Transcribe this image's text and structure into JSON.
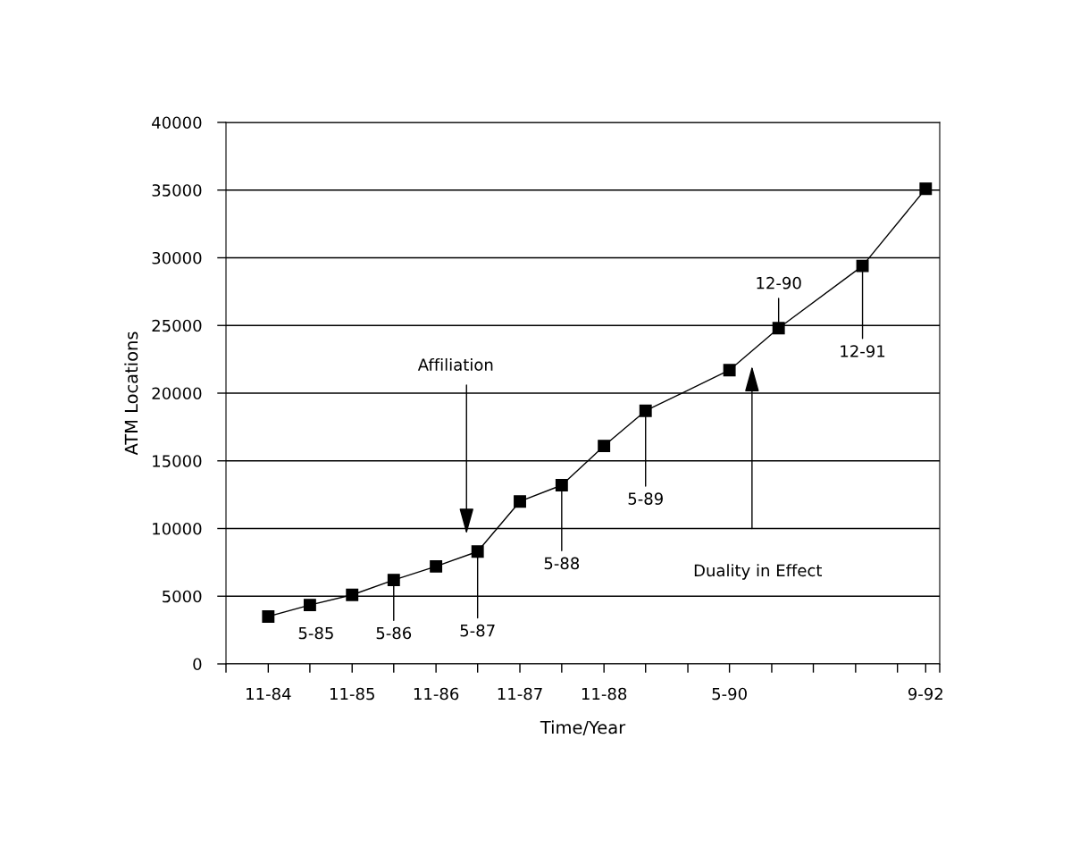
{
  "chart_data": {
    "type": "line",
    "xlabel": "Time/Year",
    "ylabel": "ATM Locations",
    "x": [
      "1984-11",
      "1985-05",
      "1985-11",
      "1986-05",
      "1986-11",
      "1987-05",
      "1987-11",
      "1988-05",
      "1988-11",
      "1989-05",
      "1990-05",
      "1990-12",
      "1991-12",
      "1992-09"
    ],
    "series": [
      {
        "color": "#000000",
        "values": [
          3500,
          4350,
          5100,
          6200,
          7200,
          8300,
          12000,
          13200,
          16100,
          18700,
          21700,
          24800,
          29400,
          35100
        ]
      }
    ],
    "marker": "square",
    "line_style": "solid",
    "grid": "y",
    "xlim": [
      "1984-05",
      "1992-11"
    ],
    "xticks": [
      {
        "value": "1984-05",
        "label": null
      },
      {
        "value": "1984-11",
        "label": "11-84"
      },
      {
        "value": "1985-05",
        "label": null
      },
      {
        "value": "1985-11",
        "label": "11-85"
      },
      {
        "value": "1986-05",
        "label": null
      },
      {
        "value": "1986-11",
        "label": "11-86"
      },
      {
        "value": "1987-05",
        "label": null
      },
      {
        "value": "1987-11",
        "label": "11-87"
      },
      {
        "value": "1988-05",
        "label": null
      },
      {
        "value": "1988-11",
        "label": "11-88"
      },
      {
        "value": "1989-05",
        "label": null
      },
      {
        "value": "1989-11",
        "label": null
      },
      {
        "value": "1990-05",
        "label": "5-90"
      },
      {
        "value": "1990-11",
        "label": null
      },
      {
        "value": "1991-05",
        "label": null
      },
      {
        "value": "1991-11",
        "label": null
      },
      {
        "value": "1992-05",
        "label": null
      },
      {
        "value": "1992-09",
        "label": "9-92"
      },
      {
        "value": "1992-11",
        "label": null
      }
    ],
    "ylim": [
      0,
      40000
    ],
    "yticks": [
      0,
      5000,
      10000,
      15000,
      20000,
      25000,
      30000,
      35000,
      40000
    ],
    "annotations": [
      "Affiliation",
      "Duality in Effect",
      {
        "text": "5-85",
        "x": "1985-05",
        "y": 4350
      },
      {
        "text": "5-86",
        "x": "1986-05",
        "y": 6200
      },
      {
        "text": "5-87",
        "x": "1987-05",
        "y": 8300
      },
      {
        "text": "5-88",
        "x": "1988-05",
        "y": 13200
      },
      {
        "text": "5-89",
        "x": "1989-05",
        "y": 18700
      },
      {
        "text": "12-90",
        "x": "1990-12",
        "y": 24800
      },
      {
        "text": "12-91",
        "x": "1991-12",
        "y": 29400
      }
    ]
  }
}
